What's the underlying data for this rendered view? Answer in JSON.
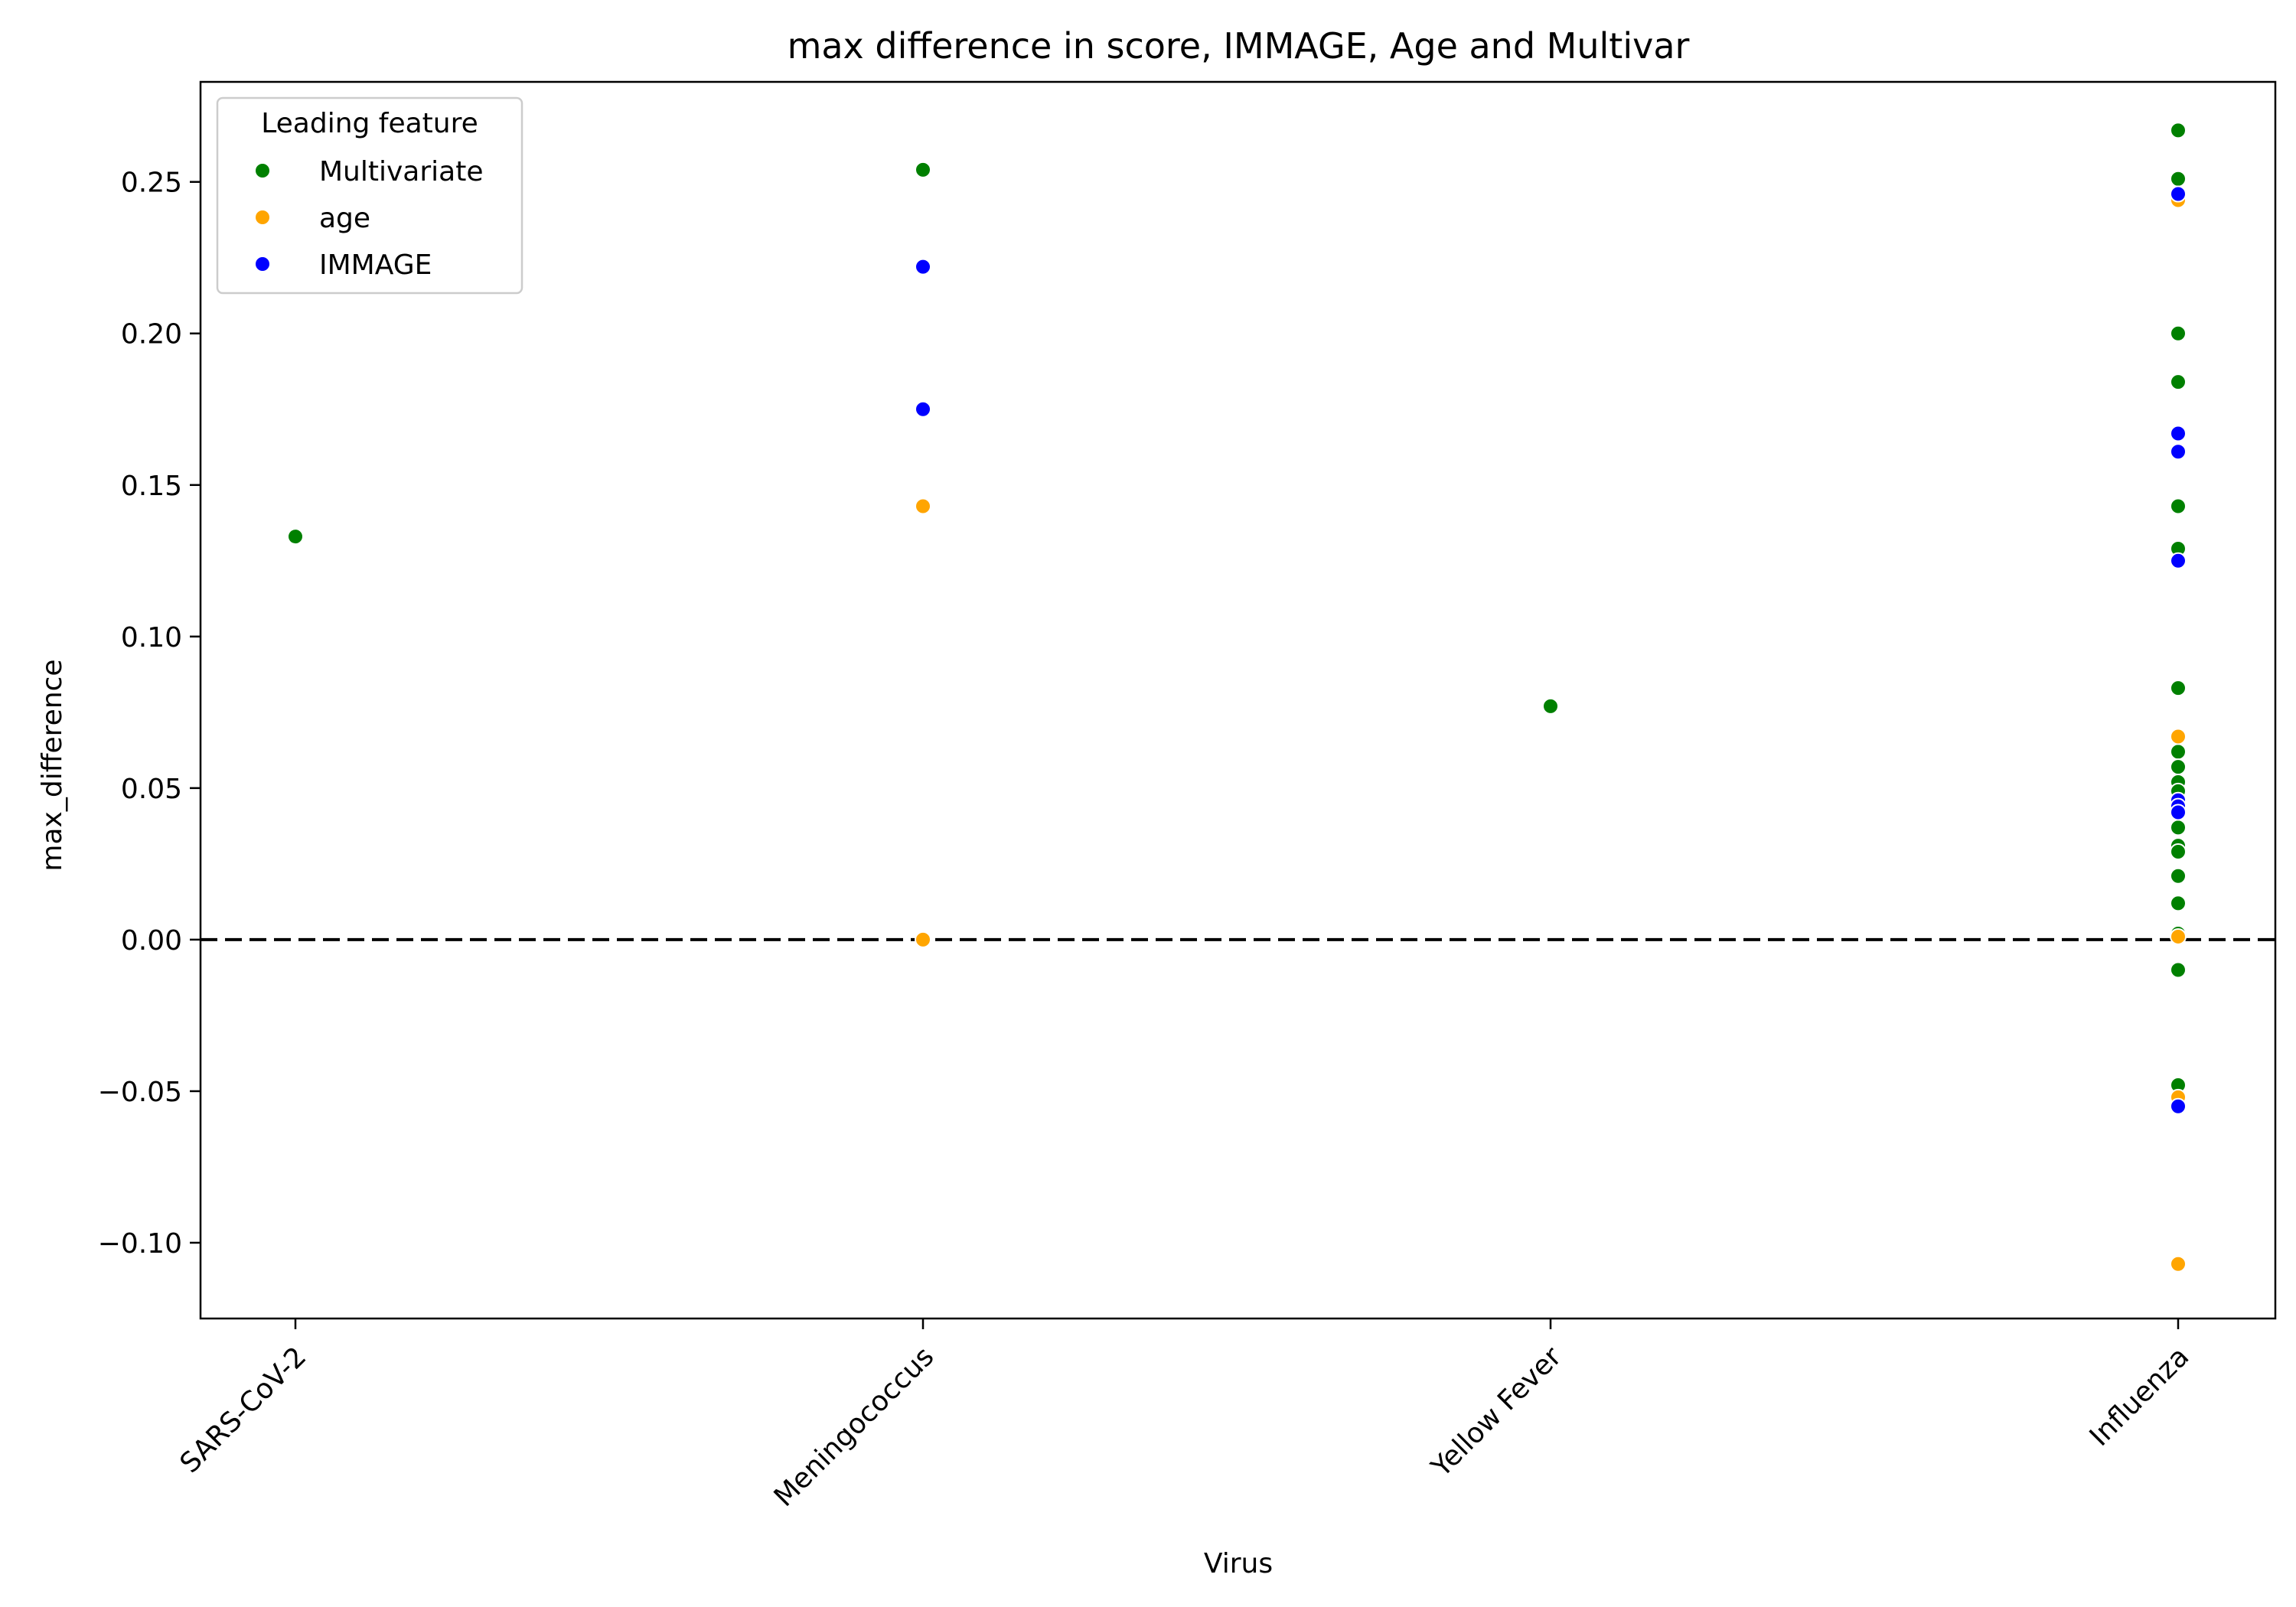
{
  "chart_data": {
    "type": "scatter",
    "title": "max difference in score, IMMAGE, Age and Multivar",
    "xlabel": "Virus",
    "ylabel": "max_difference",
    "categories": [
      "SARS-CoV-2",
      "Meningococcus",
      "Yellow Fever",
      "Influenza"
    ],
    "ylim": [
      -0.125,
      0.283
    ],
    "yticks": [
      -0.1,
      -0.05,
      0.0,
      0.05,
      0.1,
      0.15,
      0.2,
      0.25
    ],
    "ytick_labels": [
      "−0.10",
      "−0.05",
      "0.00",
      "0.05",
      "0.10",
      "0.15",
      "0.20",
      "0.25"
    ],
    "reference_line": {
      "y": 0,
      "style": "dashed",
      "color": "#000000"
    },
    "grid": false,
    "legend": {
      "title": "Leading feature",
      "position": "top-left"
    },
    "series": [
      {
        "name": "Multivariate",
        "color": "#008000",
        "points": [
          {
            "x": "SARS-CoV-2",
            "y": 0.133
          },
          {
            "x": "Meningococcus",
            "y": 0.254
          },
          {
            "x": "Yellow Fever",
            "y": 0.077
          },
          {
            "x": "Influenza",
            "y": 0.267
          },
          {
            "x": "Influenza",
            "y": 0.251
          },
          {
            "x": "Influenza",
            "y": 0.2
          },
          {
            "x": "Influenza",
            "y": 0.184
          },
          {
            "x": "Influenza",
            "y": 0.143
          },
          {
            "x": "Influenza",
            "y": 0.129
          },
          {
            "x": "Influenza",
            "y": 0.083
          },
          {
            "x": "Influenza",
            "y": 0.062
          },
          {
            "x": "Influenza",
            "y": 0.057
          },
          {
            "x": "Influenza",
            "y": 0.052
          },
          {
            "x": "Influenza",
            "y": 0.049
          },
          {
            "x": "Influenza",
            "y": 0.037
          },
          {
            "x": "Influenza",
            "y": 0.031
          },
          {
            "x": "Influenza",
            "y": 0.029
          },
          {
            "x": "Influenza",
            "y": 0.021
          },
          {
            "x": "Influenza",
            "y": 0.012
          },
          {
            "x": "Influenza",
            "y": 0.002
          },
          {
            "x": "Influenza",
            "y": -0.01
          },
          {
            "x": "Influenza",
            "y": -0.048
          }
        ]
      },
      {
        "name": "age",
        "color": "#FFA500",
        "points": [
          {
            "x": "Meningococcus",
            "y": 0.143
          },
          {
            "x": "Meningococcus",
            "y": 0.0
          },
          {
            "x": "Influenza",
            "y": 0.244
          },
          {
            "x": "Influenza",
            "y": 0.067
          },
          {
            "x": "Influenza",
            "y": 0.001
          },
          {
            "x": "Influenza",
            "y": -0.052
          },
          {
            "x": "Influenza",
            "y": -0.107
          }
        ]
      },
      {
        "name": "IMMAGE",
        "color": "#0000FF",
        "points": [
          {
            "x": "Meningococcus",
            "y": 0.222
          },
          {
            "x": "Meningococcus",
            "y": 0.175
          },
          {
            "x": "Influenza",
            "y": 0.246
          },
          {
            "x": "Influenza",
            "y": 0.167
          },
          {
            "x": "Influenza",
            "y": 0.161
          },
          {
            "x": "Influenza",
            "y": 0.125
          },
          {
            "x": "Influenza",
            "y": 0.046
          },
          {
            "x": "Influenza",
            "y": 0.044
          },
          {
            "x": "Influenza",
            "y": 0.042
          },
          {
            "x": "Influenza",
            "y": -0.055
          }
        ]
      }
    ]
  }
}
